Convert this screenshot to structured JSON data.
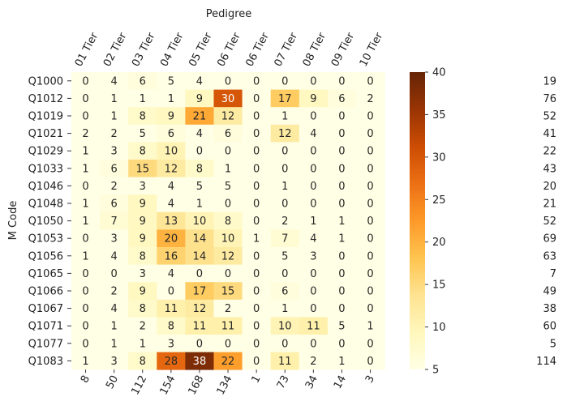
{
  "chart_data": {
    "type": "heatmap",
    "title": "Pedigree",
    "ylabel": "M Code",
    "columns": [
      "01 Tier",
      "02 Tier",
      "03 Tier",
      "04 Tier",
      "05 Tier",
      "06 Tier",
      "06 Tier",
      "07 Tier",
      "08 Tier",
      "09 Tier",
      "10 Tier"
    ],
    "rows": [
      "Q1000",
      "Q1012",
      "Q1019",
      "Q1021",
      "Q1029",
      "Q1033",
      "Q1046",
      "Q1048",
      "Q1050",
      "Q1053",
      "Q1056",
      "Q1065",
      "Q1066",
      "Q1067",
      "Q1071",
      "Q1077",
      "Q1083"
    ],
    "values": [
      [
        0,
        4,
        6,
        5,
        4,
        0,
        0,
        0,
        0,
        0,
        0
      ],
      [
        0,
        1,
        1,
        1,
        9,
        30,
        0,
        17,
        9,
        6,
        2
      ],
      [
        0,
        1,
        8,
        9,
        21,
        12,
        0,
        1,
        0,
        0,
        0
      ],
      [
        2,
        2,
        5,
        6,
        4,
        6,
        0,
        12,
        4,
        0,
        0
      ],
      [
        1,
        3,
        8,
        10,
        0,
        0,
        0,
        0,
        0,
        0,
        0
      ],
      [
        1,
        6,
        15,
        12,
        8,
        1,
        0,
        0,
        0,
        0,
        0
      ],
      [
        0,
        2,
        3,
        4,
        5,
        5,
        0,
        1,
        0,
        0,
        0
      ],
      [
        1,
        6,
        9,
        4,
        1,
        0,
        0,
        0,
        0,
        0,
        0
      ],
      [
        1,
        7,
        9,
        13,
        10,
        8,
        0,
        2,
        1,
        1,
        0
      ],
      [
        0,
        3,
        9,
        20,
        14,
        10,
        1,
        7,
        4,
        1,
        0
      ],
      [
        1,
        4,
        8,
        16,
        14,
        12,
        0,
        5,
        3,
        0,
        0
      ],
      [
        0,
        0,
        3,
        4,
        0,
        0,
        0,
        0,
        0,
        0,
        0
      ],
      [
        0,
        2,
        9,
        0,
        17,
        15,
        0,
        6,
        0,
        0,
        0
      ],
      [
        0,
        4,
        8,
        11,
        12,
        2,
        0,
        1,
        0,
        0,
        0
      ],
      [
        0,
        1,
        2,
        8,
        11,
        11,
        0,
        10,
        11,
        5,
        1
      ],
      [
        0,
        1,
        1,
        3,
        0,
        0,
        0,
        0,
        0,
        0,
        0
      ],
      [
        1,
        3,
        8,
        28,
        38,
        22,
        0,
        11,
        2,
        1,
        0
      ]
    ],
    "column_totals": [
      "8",
      "50",
      "112",
      "154",
      "168",
      "134",
      "1",
      "73",
      "34",
      "14",
      "3"
    ],
    "row_totals": [
      "19",
      "76",
      "52",
      "41",
      "22",
      "43",
      "20",
      "21",
      "52",
      "69",
      "63",
      "7",
      "49",
      "38",
      "60",
      "5",
      "114"
    ],
    "colorbar": {
      "range": [
        5,
        40
      ],
      "ticks": [
        "5",
        "10",
        "15",
        "20",
        "25",
        "30",
        "35",
        "40"
      ],
      "colormap": "YlOrBr"
    }
  }
}
